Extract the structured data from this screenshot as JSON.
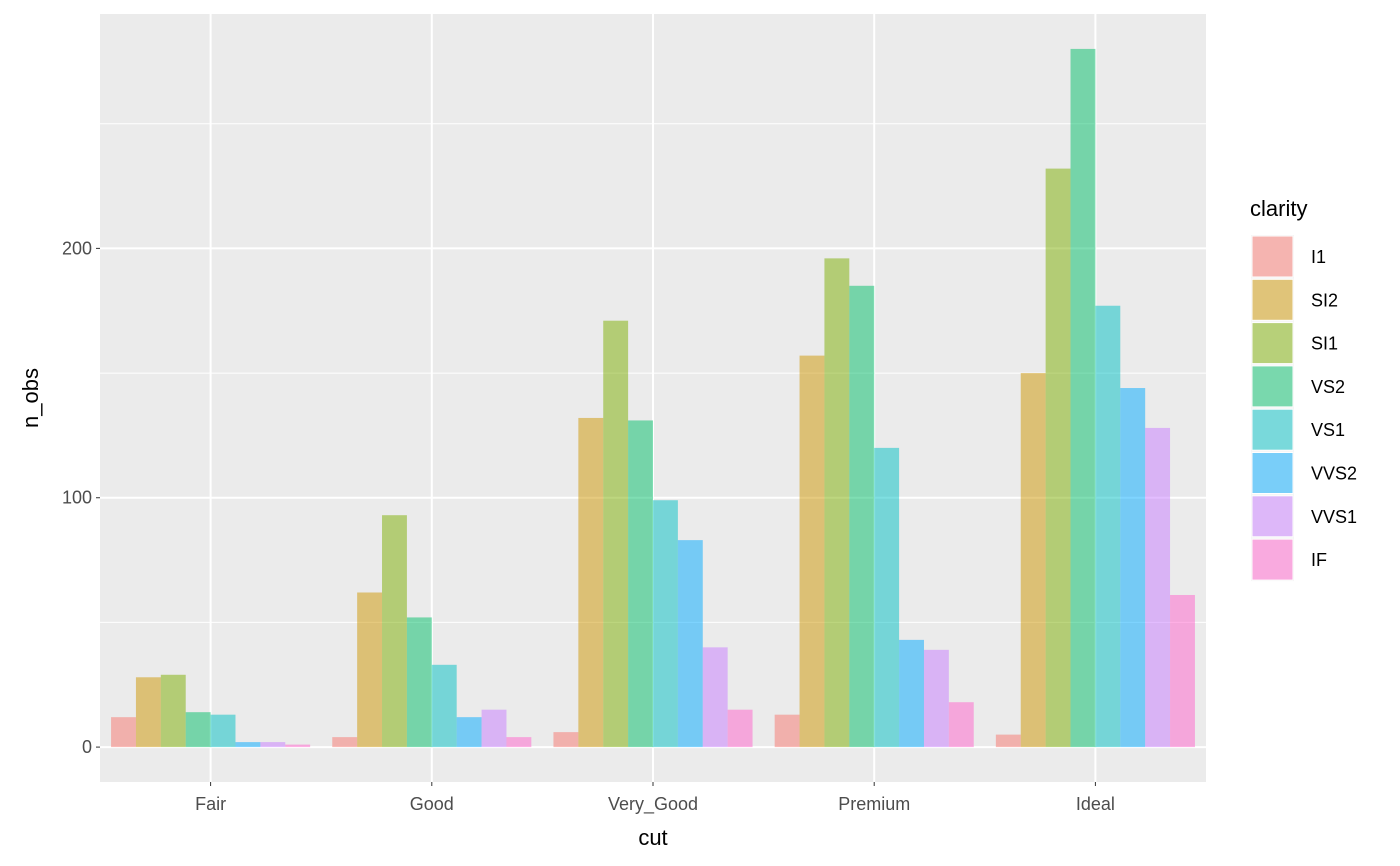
{
  "chart_data": {
    "type": "bar",
    "xlabel": "cut",
    "ylabel": "n_obs",
    "categories": [
      "Fair",
      "Good",
      "Very_Good",
      "Premium",
      "Ideal"
    ],
    "ylim": [
      -14,
      294
    ],
    "yticks": [
      0,
      100,
      200
    ],
    "grid": true,
    "legend": {
      "title": "clarity",
      "position": "right"
    },
    "series": [
      {
        "name": "I1",
        "color": "#F8766D",
        "values": [
          12,
          4,
          6,
          13,
          5
        ]
      },
      {
        "name": "SI2",
        "color": "#CD9600",
        "values": [
          28,
          62,
          132,
          157,
          150
        ]
      },
      {
        "name": "SI1",
        "color": "#7CAE00",
        "values": [
          29,
          93,
          171,
          196,
          232
        ]
      },
      {
        "name": "VS2",
        "color": "#00BE67",
        "values": [
          14,
          52,
          131,
          185,
          280
        ]
      },
      {
        "name": "VS1",
        "color": "#00BFC4",
        "values": [
          13,
          33,
          99,
          120,
          177
        ]
      },
      {
        "name": "VVS2",
        "color": "#00A9FF",
        "values": [
          2,
          12,
          83,
          43,
          144
        ]
      },
      {
        "name": "VVS1",
        "color": "#C77CFF",
        "values": [
          2,
          15,
          40,
          39,
          128
        ]
      },
      {
        "name": "IF",
        "color": "#FF61CC",
        "values": [
          1,
          4,
          15,
          18,
          61
        ]
      }
    ]
  }
}
